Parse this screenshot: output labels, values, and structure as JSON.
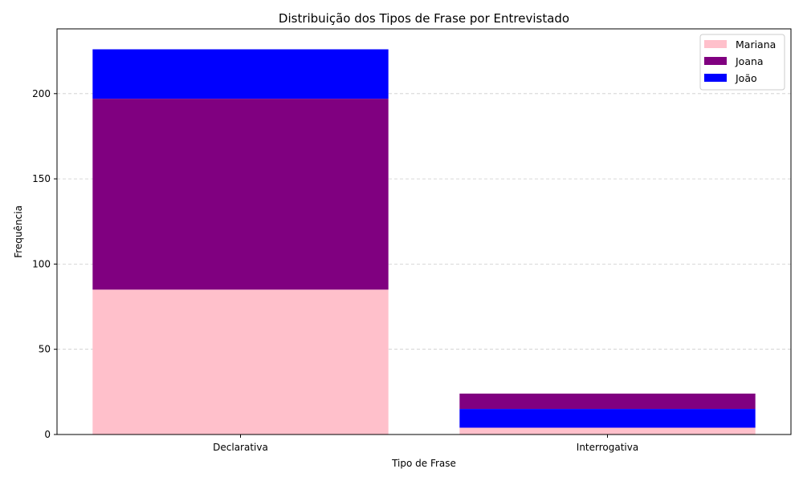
{
  "chart_data": {
    "type": "bar",
    "stacked": true,
    "title": "Distribuição dos Tipos de Frase por Entrevistado",
    "xlabel": "Tipo de Frase",
    "ylabel": "Frequência",
    "categories": [
      "Declarativa",
      "Interrogativa"
    ],
    "ylim": [
      0,
      238
    ],
    "yticks": [
      0,
      50,
      100,
      150,
      200
    ],
    "grid": "y-dashed",
    "legend_position": "top-right",
    "series": [
      {
        "name": "Mariana",
        "color": "#ffc0cb",
        "bottoms": [
          0,
          0
        ],
        "values": [
          85,
          4
        ]
      },
      {
        "name": "Joana",
        "color": "#800080",
        "bottoms": [
          85,
          15
        ],
        "values": [
          112,
          9
        ]
      },
      {
        "name": "João",
        "color": "#0000ff",
        "bottoms": [
          197,
          4
        ],
        "values": [
          29,
          11
        ]
      }
    ]
  }
}
